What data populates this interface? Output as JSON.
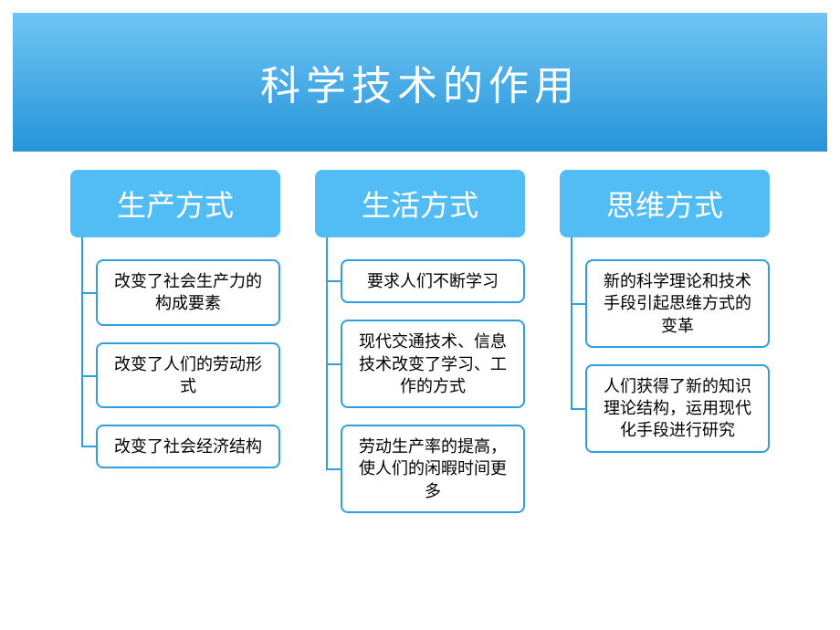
{
  "title": "科学技术的作用",
  "title_fontsize": 44,
  "header_gradient_top": "#6fc5f3",
  "header_gradient_bottom": "#2694d9",
  "category_bg": "#52bcf4",
  "category_fontsize": 32,
  "item_border_color": "#2f9fe0",
  "item_border_width": 2,
  "item_border_radius": 8,
  "item_fontsize": 18,
  "connector_color": "#2f9fe0",
  "columns": [
    {
      "category": "生产方式",
      "items": [
        "改变了社会生产力的构成要素",
        "改变了人们的劳动形式",
        "改变了社会经济结构"
      ]
    },
    {
      "category": "生活方式",
      "items": [
        "要求人们不断学习",
        "现代交通技术、信息技术改变了学习、工作的方式",
        "劳动生产率的提高，使人们的闲暇时间更多"
      ]
    },
    {
      "category": "思维方式",
      "items": [
        "新的科学理论和技术手段引起思维方式的变革",
        "人们获得了新的知识理论结构，运用现代化手段进行研究"
      ]
    }
  ]
}
